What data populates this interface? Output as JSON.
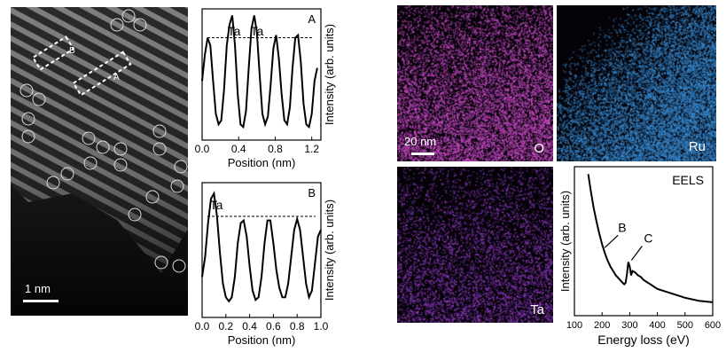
{
  "figure": {
    "stem": {
      "box_labels": [
        "B",
        "A"
      ],
      "scale_bar": "1 nm"
    },
    "maps": {
      "scale_bar": "20 nm",
      "labels": {
        "o": "O",
        "ru": "Ru",
        "ta": "Ta"
      },
      "colors": {
        "o": "#d24fd0",
        "ru": "#3a8fd8",
        "ta": "#9b3fd0"
      }
    },
    "colors": {
      "stem_bg": "#1c1c1c",
      "map_bg": "#050308",
      "line": "#000000",
      "circle": "#dddddd",
      "box": "#ffffff"
    }
  },
  "chart_data": [
    {
      "type": "line",
      "panel_label": "A",
      "xlabel": "Position (nm)",
      "ylabel": "Intensity (arb. units)",
      "xticks": [
        "0.0",
        "0.4",
        "0.8",
        "1.2"
      ],
      "xlim": [
        0,
        1.3
      ],
      "peak_labels": [
        {
          "text": "Ta",
          "x": 0.35
        },
        {
          "text": "Ta",
          "x": 0.6
        }
      ],
      "reference_line": 0.78,
      "x": [
        0.0,
        0.03,
        0.06,
        0.09,
        0.12,
        0.15,
        0.18,
        0.21,
        0.24,
        0.27,
        0.3,
        0.33,
        0.36,
        0.39,
        0.42,
        0.45,
        0.48,
        0.51,
        0.54,
        0.57,
        0.6,
        0.63,
        0.66,
        0.69,
        0.72,
        0.75,
        0.78,
        0.81,
        0.84,
        0.87,
        0.9,
        0.93,
        0.96,
        0.99,
        1.02,
        1.05,
        1.08,
        1.11,
        1.14,
        1.17,
        1.2,
        1.23,
        1.26
      ],
      "y": [
        0.45,
        0.65,
        0.78,
        0.72,
        0.45,
        0.2,
        0.12,
        0.15,
        0.38,
        0.72,
        0.88,
        0.95,
        0.72,
        0.35,
        0.12,
        0.1,
        0.22,
        0.55,
        0.85,
        0.95,
        0.82,
        0.5,
        0.2,
        0.12,
        0.18,
        0.42,
        0.7,
        0.8,
        0.62,
        0.35,
        0.15,
        0.12,
        0.25,
        0.55,
        0.78,
        0.8,
        0.6,
        0.28,
        0.12,
        0.1,
        0.2,
        0.45,
        0.55
      ]
    },
    {
      "type": "line",
      "panel_label": "B",
      "xlabel": "Position (nm)",
      "ylabel": "Intensity (arb. units)",
      "xticks": [
        "0.0",
        "0.2",
        "0.4",
        "0.6",
        "0.8",
        "1.0"
      ],
      "xlim": [
        0,
        1.0
      ],
      "peak_labels": [
        {
          "text": "Ta",
          "x": 0.12
        }
      ],
      "reference_line": 0.75,
      "x": [
        0.0,
        0.025,
        0.05,
        0.075,
        0.1,
        0.125,
        0.15,
        0.175,
        0.2,
        0.225,
        0.25,
        0.275,
        0.3,
        0.325,
        0.35,
        0.375,
        0.4,
        0.425,
        0.45,
        0.475,
        0.5,
        0.525,
        0.55,
        0.575,
        0.6,
        0.625,
        0.65,
        0.675,
        0.7,
        0.725,
        0.75,
        0.775,
        0.8,
        0.825,
        0.85,
        0.875,
        0.9,
        0.925,
        0.95,
        0.975,
        1.0
      ],
      "y": [
        0.3,
        0.45,
        0.7,
        0.88,
        0.92,
        0.75,
        0.48,
        0.25,
        0.15,
        0.12,
        0.15,
        0.3,
        0.55,
        0.7,
        0.72,
        0.6,
        0.38,
        0.2,
        0.13,
        0.15,
        0.3,
        0.55,
        0.72,
        0.72,
        0.55,
        0.35,
        0.22,
        0.15,
        0.15,
        0.25,
        0.45,
        0.65,
        0.73,
        0.65,
        0.45,
        0.25,
        0.15,
        0.2,
        0.4,
        0.6,
        0.65
      ]
    },
    {
      "type": "line",
      "panel_label": "EELS",
      "xlabel": "Energy loss (eV)",
      "ylabel": "Intensity (arb. units)",
      "xticks": [
        "100",
        "200",
        "300",
        "400",
        "500",
        "600"
      ],
      "xlim": [
        100,
        600
      ],
      "annotations": [
        {
          "text": "B",
          "x": 200
        },
        {
          "text": "C",
          "x": 300
        }
      ],
      "x": [
        150,
        160,
        170,
        180,
        190,
        200,
        210,
        220,
        230,
        240,
        250,
        260,
        270,
        280,
        285,
        290,
        295,
        300,
        305,
        310,
        320,
        330,
        340,
        350,
        375,
        400,
        450,
        500,
        550,
        600
      ],
      "y": [
        0.95,
        0.83,
        0.72,
        0.63,
        0.55,
        0.48,
        0.42,
        0.37,
        0.33,
        0.3,
        0.27,
        0.25,
        0.23,
        0.21,
        0.22,
        0.28,
        0.36,
        0.33,
        0.27,
        0.3,
        0.29,
        0.27,
        0.26,
        0.24,
        0.21,
        0.18,
        0.15,
        0.12,
        0.1,
        0.09
      ]
    }
  ]
}
